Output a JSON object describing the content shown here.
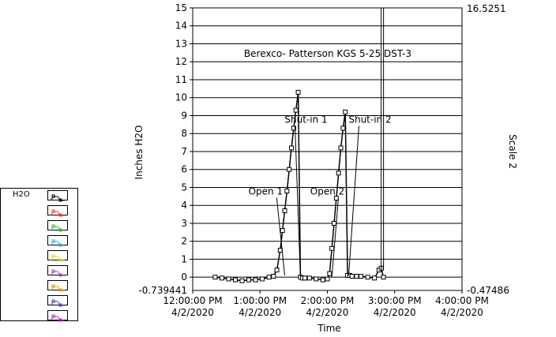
{
  "chart_data": {
    "type": "line",
    "title": "Berexco- Patterson KGS 5-25  DST-3",
    "xlabel": "Time",
    "ylabel": "Inches H2O",
    "y2label": "Scale 2",
    "ylim": [
      -0.739441,
      15
    ],
    "y2lim": [
      -0.47486,
      16.5251
    ],
    "y2_tick_labels": [
      "16.5251",
      "-0.47486"
    ],
    "y_tick_labels": [
      "-0.739441",
      "0",
      "1",
      "2",
      "3",
      "4",
      "5",
      "6",
      "7",
      "8",
      "9",
      "10",
      "11",
      "12",
      "13",
      "14",
      "15"
    ],
    "y_ticks": [
      0,
      1,
      2,
      3,
      4,
      5,
      6,
      7,
      8,
      9,
      10,
      11,
      12,
      13,
      14,
      15
    ],
    "x_ticks": [
      {
        "time": "12:00:00 PM",
        "date": "4/2/2020",
        "minutes": 0
      },
      {
        "time": "1:00:00 PM",
        "date": "4/2/2020",
        "minutes": 60
      },
      {
        "time": "2:00:00 PM",
        "date": "4/2/2020",
        "minutes": 120
      },
      {
        "time": "3:00:00 PM",
        "date": "4/2/2020",
        "minutes": 180
      },
      {
        "time": "4:00:00 PM",
        "date": "4/2/2020",
        "minutes": 240
      }
    ],
    "grid": true,
    "series": [
      {
        "name": "H2O",
        "color": "#000000",
        "marker": "square",
        "x": [
          20,
          26,
          32,
          38,
          44,
          50,
          56,
          62,
          68,
          72,
          75,
          78,
          80,
          82,
          84,
          86,
          88,
          90,
          92,
          94,
          96,
          98,
          100,
          104,
          110,
          116,
          120,
          122,
          124,
          126,
          128,
          130,
          132,
          134,
          136,
          138,
          140,
          142,
          146,
          150,
          156,
          162,
          166,
          168,
          170
        ],
        "values": [
          0.0,
          -0.05,
          -0.1,
          -0.15,
          -0.2,
          -0.15,
          -0.15,
          -0.1,
          0.0,
          0.05,
          0.4,
          1.5,
          2.6,
          3.7,
          4.8,
          6.0,
          7.2,
          8.3,
          9.3,
          10.3,
          0.0,
          -0.05,
          -0.05,
          -0.05,
          -0.1,
          -0.15,
          -0.1,
          0.2,
          1.6,
          3.0,
          4.4,
          5.8,
          7.2,
          8.3,
          9.2,
          0.1,
          0.1,
          0.05,
          0.05,
          0.05,
          0.0,
          -0.05,
          0.4,
          0.5,
          0.0
        ]
      }
    ],
    "legend_labels": [
      "H2O"
    ],
    "legend_colors": [
      "#000000",
      "#ff3030",
      "#20c020",
      "#20b0d0",
      "#d0e020",
      "#a040c0",
      "#e0a000",
      "#4040c0",
      "#c020c0"
    ],
    "annotations": [
      {
        "text": "Open 1",
        "x": 65,
        "y": 4.6,
        "target_x": 82,
        "target_y": 0.1
      },
      {
        "text": "Shut-in 1",
        "x": 101,
        "y": 8.6,
        "target_x": 96,
        "target_y": 0.0
      },
      {
        "text": "Open 2",
        "x": 120,
        "y": 4.6,
        "target_x": 124,
        "target_y": 0.0
      },
      {
        "text": "Shut-in 2",
        "x": 158,
        "y": 8.6,
        "target_x": 139,
        "target_y": 0.1
      }
    ],
    "vertical_marker_x": 169
  }
}
